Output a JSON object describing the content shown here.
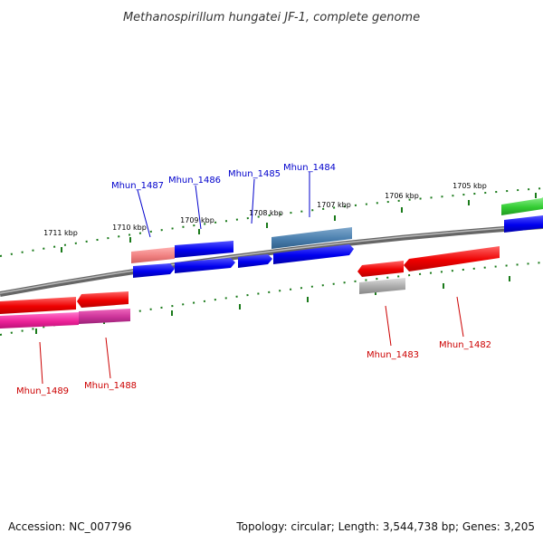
{
  "title": "Methanospirillum hungatei JF-1, complete genome",
  "accession": "Accession: NC_007796",
  "summary": "Topology: circular; Length: 3,544,738 bp; Genes: 3,205",
  "colors": {
    "forward_label": "#0000cc",
    "reverse_label": "#cc0000",
    "tick": "#1a7a1a",
    "backbone": "#888888"
  },
  "kbp_labels": [
    "1711 kbp",
    "1710 kbp",
    "1709 kbp",
    "1708 kbp",
    "1707 kbp",
    "1706 kbp",
    "1705 kbp"
  ],
  "forward_gene_labels": [
    "Mhun_1487",
    "Mhun_1486",
    "Mhun_1485",
    "Mhun_1484"
  ],
  "reverse_gene_labels": [
    "Mhun_1489",
    "Mhun_1488",
    "Mhun_1483",
    "Mhun_1482"
  ]
}
